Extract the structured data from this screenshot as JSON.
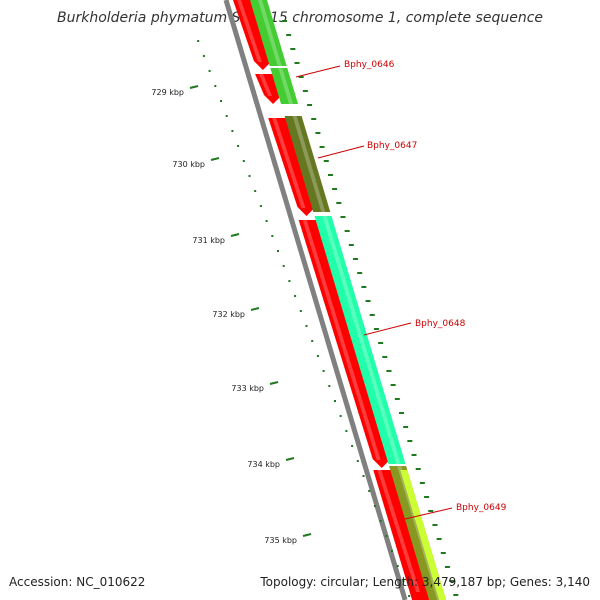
{
  "map": {
    "title": "Burkholderia phymatum STM815 chromosome 1, complete sequence",
    "accession_text": "Accession: NC_010622",
    "summary_text": "Topology: circular; Length: 3,479,187 bp; Genes: 3,140",
    "colors": {
      "background": "#ffffff",
      "backbone": "#808080",
      "cds_reverse": "#ff0000",
      "tick": "#1f7a1f",
      "label": "#cc0000"
    },
    "ticks": [
      {
        "label": "729 kbp"
      },
      {
        "label": "730 kbp"
      },
      {
        "label": "731 kbp"
      },
      {
        "label": "732 kbp"
      },
      {
        "label": "733 kbp"
      },
      {
        "label": "734 kbp"
      },
      {
        "label": "735 kbp"
      }
    ],
    "genes": [
      {
        "name": "Bphy_0646",
        "color": "#44cc33"
      },
      {
        "name": "Bphy_0647",
        "color": "#667722"
      },
      {
        "name": "Bphy_0648",
        "color": "#22ffaa"
      },
      {
        "name": "Bphy_0649",
        "color": "#889922"
      }
    ]
  }
}
